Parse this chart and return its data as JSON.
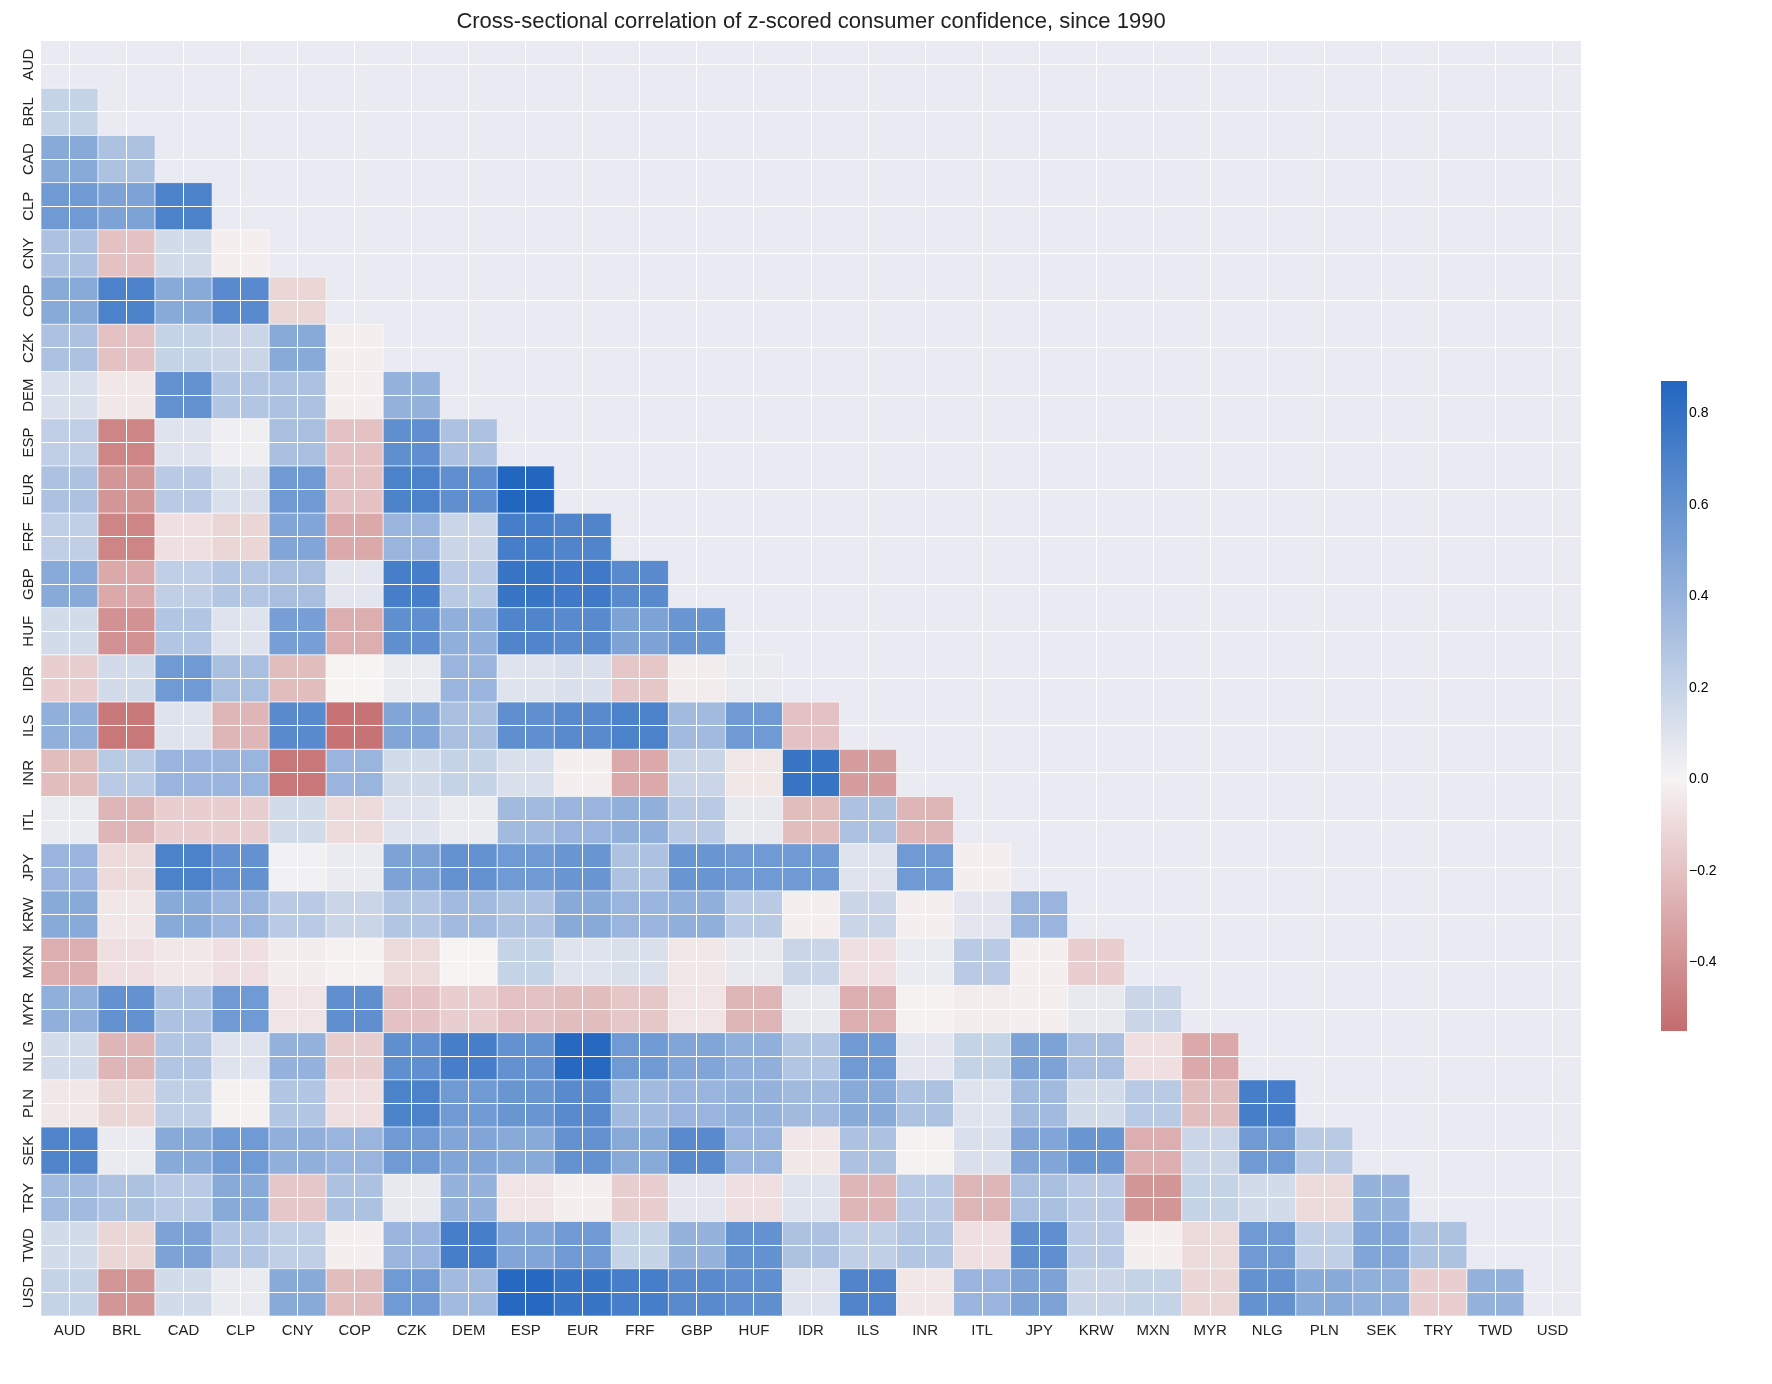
{
  "chart_data": {
    "type": "heatmap",
    "title": "Cross-sectional correlation of z-scored consumer confidence, since 1990",
    "categories": [
      "AUD",
      "BRL",
      "CAD",
      "CLP",
      "CNY",
      "COP",
      "CZK",
      "DEM",
      "ESP",
      "EUR",
      "FRF",
      "GBP",
      "HUF",
      "IDR",
      "ILS",
      "INR",
      "ITL",
      "JPY",
      "KRW",
      "MXN",
      "MYR",
      "NLG",
      "PLN",
      "SEK",
      "TRY",
      "TWD",
      "USD"
    ],
    "y_categories": [
      "AUD",
      "BRL",
      "CAD",
      "CLP",
      "CNY",
      "COP",
      "CZK",
      "DEM",
      "ESP",
      "EUR",
      "FRF",
      "GBP",
      "HUF",
      "IDR",
      "ILS",
      "INR",
      "ITL",
      "JPY",
      "KRW",
      "MXN",
      "MYR",
      "NLG",
      "PLN",
      "SEK",
      "TRY",
      "TWD",
      "USD"
    ],
    "clim": [
      -0.55,
      0.87
    ],
    "cticks": [
      -0.4,
      -0.2,
      {
        "value": 0,
        "label": "0.0"
      },
      0.2,
      0.4,
      0.6,
      0.8
    ],
    "grid": true,
    "cells": [
      [
        null,
        null,
        null,
        null,
        null,
        null,
        null,
        null,
        null,
        null,
        null,
        null,
        null,
        null,
        null,
        null,
        null,
        null,
        null,
        null,
        null,
        null,
        null,
        null,
        null,
        null,
        null
      ],
      [
        0.2,
        null,
        null,
        null,
        null,
        null,
        null,
        null,
        null,
        null,
        null,
        null,
        null,
        null,
        null,
        null,
        null,
        null,
        null,
        null,
        null,
        null,
        null,
        null,
        null,
        null,
        null
      ],
      [
        0.45,
        0.3,
        null,
        null,
        null,
        null,
        null,
        null,
        null,
        null,
        null,
        null,
        null,
        null,
        null,
        null,
        null,
        null,
        null,
        null,
        null,
        null,
        null,
        null,
        null,
        null,
        null
      ],
      [
        0.55,
        0.5,
        0.7,
        null,
        null,
        null,
        null,
        null,
        null,
        null,
        null,
        null,
        null,
        null,
        null,
        null,
        null,
        null,
        null,
        null,
        null,
        null,
        null,
        null,
        null,
        null,
        null
      ],
      [
        0.3,
        -0.2,
        0.15,
        -0.02,
        null,
        null,
        null,
        null,
        null,
        null,
        null,
        null,
        null,
        null,
        null,
        null,
        null,
        null,
        null,
        null,
        null,
        null,
        null,
        null,
        null,
        null,
        null
      ],
      [
        0.45,
        0.7,
        0.45,
        0.65,
        -0.12,
        null,
        null,
        null,
        null,
        null,
        null,
        null,
        null,
        null,
        null,
        null,
        null,
        null,
        null,
        null,
        null,
        null,
        null,
        null,
        null,
        null,
        null
      ],
      [
        0.3,
        -0.2,
        0.2,
        0.18,
        0.45,
        -0.02,
        null,
        null,
        null,
        null,
        null,
        null,
        null,
        null,
        null,
        null,
        null,
        null,
        null,
        null,
        null,
        null,
        null,
        null,
        null,
        null,
        null
      ],
      [
        0.12,
        -0.05,
        0.6,
        0.28,
        0.3,
        -0.02,
        0.4,
        null,
        null,
        null,
        null,
        null,
        null,
        null,
        null,
        null,
        null,
        null,
        null,
        null,
        null,
        null,
        null,
        null,
        null,
        null,
        null
      ],
      [
        0.22,
        -0.45,
        0.1,
        0.03,
        0.32,
        -0.2,
        0.62,
        0.3,
        null,
        null,
        null,
        null,
        null,
        null,
        null,
        null,
        null,
        null,
        null,
        null,
        null,
        null,
        null,
        null,
        null,
        null,
        null
      ],
      [
        0.3,
        -0.38,
        0.25,
        0.12,
        0.55,
        -0.2,
        0.7,
        0.62,
        0.87,
        null,
        null,
        null,
        null,
        null,
        null,
        null,
        null,
        null,
        null,
        null,
        null,
        null,
        null,
        null,
        null,
        null,
        null
      ],
      [
        0.22,
        -0.45,
        -0.08,
        -0.12,
        0.48,
        -0.3,
        0.38,
        0.18,
        0.72,
        0.68,
        null,
        null,
        null,
        null,
        null,
        null,
        null,
        null,
        null,
        null,
        null,
        null,
        null,
        null,
        null,
        null,
        null
      ],
      [
        0.45,
        -0.3,
        0.22,
        0.28,
        0.32,
        0.08,
        0.72,
        0.25,
        0.78,
        0.75,
        0.65,
        null,
        null,
        null,
        null,
        null,
        null,
        null,
        null,
        null,
        null,
        null,
        null,
        null,
        null,
        null,
        null
      ],
      [
        0.15,
        -0.4,
        0.28,
        0.1,
        0.52,
        -0.28,
        0.62,
        0.42,
        0.68,
        0.65,
        0.5,
        0.58,
        null,
        null,
        null,
        null,
        null,
        null,
        null,
        null,
        null,
        null,
        null,
        null,
        null,
        null,
        null
      ],
      [
        -0.15,
        0.15,
        0.55,
        0.32,
        -0.22,
        0.0,
        0.05,
        0.38,
        0.1,
        0.12,
        -0.18,
        -0.03,
        0.05,
        null,
        null,
        null,
        null,
        null,
        null,
        null,
        null,
        null,
        null,
        null,
        null,
        null,
        null
      ],
      [
        0.42,
        -0.5,
        0.1,
        -0.25,
        0.65,
        -0.52,
        0.48,
        0.32,
        0.62,
        0.65,
        0.7,
        0.35,
        0.55,
        -0.2,
        null,
        null,
        null,
        null,
        null,
        null,
        null,
        null,
        null,
        null,
        null,
        null,
        null
      ],
      [
        -0.22,
        0.25,
        0.38,
        0.38,
        -0.5,
        0.38,
        0.15,
        0.2,
        0.12,
        -0.02,
        -0.3,
        0.18,
        -0.05,
        0.78,
        -0.35,
        null,
        null,
        null,
        null,
        null,
        null,
        null,
        null,
        null,
        null,
        null,
        null
      ],
      [
        0.05,
        -0.25,
        -0.15,
        -0.15,
        0.15,
        -0.1,
        0.1,
        0.05,
        0.35,
        0.38,
        0.42,
        0.25,
        0.06,
        -0.22,
        0.3,
        -0.25,
        null,
        null,
        null,
        null,
        null,
        null,
        null,
        null,
        null,
        null,
        null
      ],
      [
        0.38,
        -0.1,
        0.7,
        0.6,
        0.02,
        0.05,
        0.5,
        0.6,
        0.55,
        0.58,
        0.3,
        0.58,
        0.55,
        0.55,
        0.1,
        0.55,
        -0.02,
        null,
        null,
        null,
        null,
        null,
        null,
        null,
        null,
        null,
        null
      ],
      [
        0.45,
        -0.05,
        0.45,
        0.38,
        0.25,
        0.18,
        0.28,
        0.35,
        0.3,
        0.45,
        0.38,
        0.42,
        0.25,
        -0.02,
        0.18,
        -0.02,
        0.08,
        0.38,
        null,
        null,
        null,
        null,
        null,
        null,
        null,
        null,
        null
      ],
      [
        -0.28,
        -0.08,
        -0.05,
        -0.08,
        -0.03,
        -0.01,
        -0.1,
        0.0,
        0.2,
        0.1,
        0.12,
        -0.05,
        0.06,
        0.18,
        -0.08,
        0.05,
        0.25,
        -0.02,
        -0.15,
        null,
        null,
        null,
        null,
        null,
        null,
        null,
        null
      ],
      [
        0.42,
        0.6,
        0.3,
        0.55,
        -0.06,
        0.62,
        -0.2,
        -0.15,
        -0.2,
        -0.22,
        -0.18,
        -0.06,
        -0.25,
        0.06,
        -0.28,
        -0.01,
        -0.03,
        -0.02,
        0.06,
        0.18,
        null,
        null,
        null,
        null,
        null,
        null,
        null
      ],
      [
        0.15,
        -0.25,
        0.28,
        0.1,
        0.4,
        -0.15,
        0.62,
        0.72,
        0.6,
        0.85,
        0.55,
        0.48,
        0.42,
        0.28,
        0.55,
        0.08,
        0.2,
        0.5,
        0.32,
        -0.08,
        -0.3,
        null,
        null,
        null,
        null,
        null,
        null
      ],
      [
        -0.05,
        -0.12,
        0.22,
        -0.01,
        0.28,
        -0.08,
        0.7,
        0.55,
        0.58,
        0.65,
        0.35,
        0.38,
        0.4,
        0.35,
        0.45,
        0.3,
        0.1,
        0.35,
        0.15,
        0.25,
        -0.22,
        0.72,
        null,
        null,
        null,
        null,
        null
      ],
      [
        0.68,
        0.05,
        0.45,
        0.55,
        0.42,
        0.38,
        0.55,
        0.48,
        0.45,
        0.6,
        0.45,
        0.65,
        0.38,
        -0.05,
        0.3,
        -0.01,
        0.12,
        0.48,
        0.58,
        -0.28,
        0.18,
        0.55,
        0.25,
        null,
        null,
        null,
        null
      ],
      [
        0.35,
        0.3,
        0.25,
        0.45,
        -0.18,
        0.3,
        0.06,
        0.4,
        -0.06,
        -0.02,
        -0.15,
        0.08,
        -0.08,
        0.1,
        -0.25,
        0.25,
        -0.25,
        0.32,
        0.25,
        -0.38,
        0.2,
        0.15,
        -0.1,
        0.4,
        null,
        null,
        null
      ],
      [
        0.15,
        -0.12,
        0.5,
        0.28,
        0.22,
        -0.02,
        0.38,
        0.72,
        0.48,
        0.55,
        0.2,
        0.4,
        0.6,
        0.3,
        0.22,
        0.28,
        -0.08,
        0.62,
        0.25,
        -0.02,
        -0.1,
        0.55,
        0.22,
        0.48,
        0.3,
        null,
        null
      ],
      [
        0.2,
        -0.38,
        0.15,
        0.05,
        0.45,
        -0.22,
        0.55,
        0.35,
        0.85,
        0.78,
        0.72,
        0.65,
        0.62,
        0.1,
        0.68,
        -0.05,
        0.38,
        0.5,
        0.18,
        0.2,
        -0.12,
        0.6,
        0.45,
        0.42,
        -0.15,
        0.4,
        null
      ]
    ]
  }
}
